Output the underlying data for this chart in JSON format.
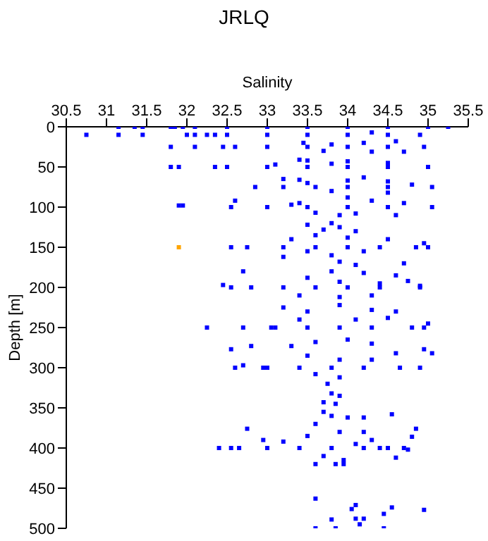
{
  "chart_data": {
    "type": "scatter",
    "title": "JRLQ",
    "xlabel": "Salinity",
    "ylabel": "Depth [m]",
    "xlim": [
      30.5,
      35.5
    ],
    "xticks": [
      30.5,
      31,
      31.5,
      32,
      32.5,
      33,
      33.5,
      34,
      34.5,
      35,
      35.5
    ],
    "ylim": [
      500,
      0
    ],
    "yticks": [
      0,
      50,
      100,
      150,
      200,
      250,
      300,
      350,
      400,
      450,
      500
    ],
    "grid": false,
    "legend": false,
    "marker": "square",
    "series": [
      {
        "color": "#0000ff",
        "x": [
          31.15,
          31.35,
          31.45,
          31.8,
          31.85,
          31.95,
          32.1,
          32.5,
          33,
          33.5,
          34,
          34.5,
          35.0,
          35.25,
          30.75,
          31.15,
          31.45,
          32.0,
          32.1,
          32.25,
          32.35,
          32.5,
          33,
          33.5,
          34,
          34.5,
          34.9,
          34.3,
          31.8,
          32.1,
          32.45,
          32.6,
          33,
          33.5,
          34,
          34.5,
          34.95,
          33.45,
          33.8,
          34.2,
          34.6,
          33.7,
          34.3,
          34.7,
          31.8,
          31.9,
          32.35,
          32.5,
          33,
          33.5,
          34,
          34.5,
          35.0,
          33.4,
          33.5,
          34,
          34.5,
          33.1,
          33.8,
          32.85,
          33.2,
          33.6,
          34,
          34.5,
          35.05,
          33.2,
          33.4,
          34,
          34.2,
          34.5,
          33.5,
          34.8,
          33.8,
          34.5,
          31.9,
          31.95,
          32.6,
          32.55,
          33,
          33.5,
          34,
          34.5,
          35.05,
          33.4,
          34,
          34.3,
          34.7,
          33.6,
          33.9,
          34.1,
          34.6,
          33.3,
          33.5,
          33.7,
          33.9,
          34.1,
          33.8,
          32.55,
          32.75,
          33.2,
          33.6,
          34,
          34.4,
          34.85,
          34.95,
          35.0,
          33.3,
          33.6,
          34,
          34.5,
          33.5,
          33.8,
          34.2,
          33.2,
          33.9,
          34.1,
          34.7,
          32.45,
          32.55,
          32.7,
          32.8,
          33.2,
          33.6,
          34,
          34.4,
          34.9,
          33.5,
          33.8,
          34.2,
          34.6,
          33.9,
          34.4,
          33.4,
          33.9,
          34.3,
          34.75,
          34.9,
          32.25,
          32.7,
          33.05,
          33.1,
          33.5,
          33.9,
          34.3,
          34.8,
          35.0,
          34.95,
          33.2,
          33.5,
          33.9,
          34.3,
          34.6,
          33.4,
          34.1,
          34.5,
          32.55,
          32.8,
          32.6,
          32.7,
          32.95,
          33,
          33.4,
          33.8,
          34.2,
          34.65,
          34.9,
          35.05,
          34.95,
          33.3,
          33.6,
          34,
          34.3,
          34.6,
          33.5,
          33.9,
          34.3,
          33.6,
          33.9,
          33.75,
          33.8,
          33.9,
          33.85,
          33.7,
          32.4,
          32.55,
          32.65,
          32.75,
          32.95,
          33.2,
          33,
          33.4,
          33.8,
          34.2,
          34.4,
          34.5,
          34.7,
          34.75,
          34.85,
          34.8,
          34.6,
          33.7,
          33.8,
          34.0,
          33.6,
          34.2,
          33.5,
          34.3,
          33.9,
          34.1,
          33.7,
          33.95,
          33.6,
          33.85,
          33.95,
          34.55,
          34.2,
          33.6,
          33.6,
          33.8,
          33.85,
          34.05,
          34.1,
          34.1,
          34.15,
          34.2,
          34.45,
          34.45,
          34.55,
          34.95
        ],
        "values": [
          0,
          0,
          0,
          0,
          0,
          0,
          0,
          0,
          0,
          0,
          0,
          0,
          0,
          0,
          10,
          10,
          10,
          10,
          10,
          10,
          10,
          10,
          10,
          10,
          10,
          10,
          10,
          7,
          25,
          25,
          25,
          25,
          25,
          25,
          25,
          25,
          25,
          20,
          22,
          20,
          18,
          30,
          31,
          31,
          50,
          50,
          50,
          50,
          50,
          50,
          50,
          50,
          50,
          41,
          42,
          43,
          45,
          47,
          46,
          75,
          75,
          75,
          75,
          75,
          75,
          65,
          66,
          67,
          63,
          68,
          70,
          72,
          80,
          82,
          98,
          98,
          92,
          100,
          100,
          100,
          100,
          100,
          100,
          95,
          88,
          92,
          95,
          107,
          110,
          108,
          110,
          97,
          122,
          128,
          125,
          130,
          120,
          150,
          150,
          150,
          150,
          150,
          150,
          150,
          145,
          150,
          140,
          135,
          138,
          140,
          155,
          160,
          155,
          162,
          168,
          172,
          170,
          197,
          200,
          180,
          200,
          200,
          200,
          200,
          200,
          200,
          188,
          180,
          182,
          185,
          193,
          195,
          210,
          212,
          210,
          192,
          198,
          250,
          250,
          250,
          250,
          250,
          250,
          250,
          250,
          245,
          250,
          225,
          230,
          222,
          228,
          230,
          240,
          240,
          238,
          277,
          273,
          300,
          297,
          300,
          300,
          300,
          300,
          300,
          300,
          300,
          282,
          277,
          273,
          268,
          265,
          270,
          282,
          285,
          290,
          290,
          308,
          312,
          320,
          332,
          335,
          345,
          343,
          400,
          400,
          400,
          376,
          390,
          392,
          400,
          400,
          400,
          400,
          400,
          400,
          400,
          402,
          376,
          386,
          412,
          355,
          360,
          362,
          370,
          380,
          385,
          390,
          380,
          395,
          410,
          415,
          420,
          420,
          420,
          358,
          362,
          463,
          500,
          489,
          500,
          476,
          471,
          488,
          495,
          488,
          482,
          500,
          474,
          477
        ]
      },
      {
        "color": "#ffa500",
        "x": [
          31.9
        ],
        "values": [
          150
        ]
      }
    ]
  }
}
